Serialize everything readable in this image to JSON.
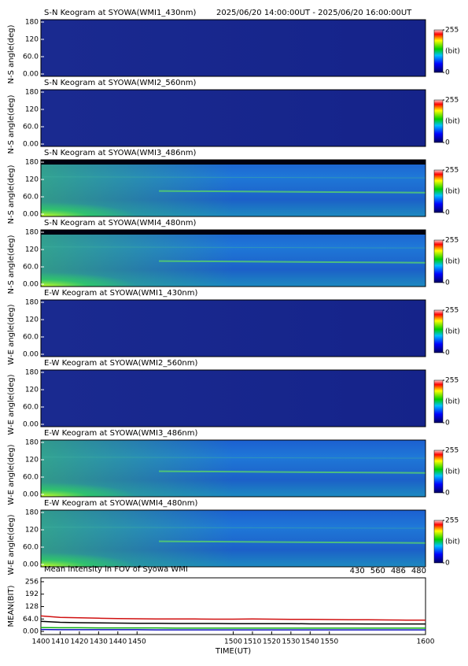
{
  "chart_data": [
    {
      "type": "keogram",
      "title": "S-N Keogram at SYOWA(WMI1_430nm)",
      "subtitle": "2025/06/20 14:00:00UT - 2025/06/20 16:00:00UT",
      "ylabel": "N-S angle(deg)",
      "ylim": [
        0,
        180
      ],
      "yticks": [
        {
          "value": 0,
          "label": "0.00"
        },
        {
          "value": 60,
          "label": "60.0"
        },
        120,
        180
      ],
      "colorbar": {
        "ticks": [
          0,
          255
        ],
        "label": "(bit)"
      }
    },
    {
      "type": "keogram",
      "title": "S-N Keogram at SYOWA(WMI2_560nm)",
      "ylabel": "N-S angle(deg)",
      "ylim": [
        0,
        180
      ],
      "yticks": [
        {
          "value": 0,
          "label": "0.00"
        },
        {
          "value": 60,
          "label": "60.0"
        },
        120,
        180
      ],
      "colorbar": {
        "ticks": [
          0,
          255
        ],
        "label": "(bit)"
      }
    },
    {
      "type": "keogram",
      "title": "S-N Keogram at SYOWA(WMI3_486nm)",
      "ylabel": "N-S angle(deg)",
      "ylim": [
        0,
        180
      ],
      "yticks": [
        {
          "value": 0,
          "label": "0.00"
        },
        {
          "value": 60,
          "label": "60.0"
        },
        120,
        180
      ],
      "colorbar": {
        "ticks": [
          0,
          255
        ],
        "label": "(bit)"
      }
    },
    {
      "type": "keogram",
      "title": "S-N Keogram at SYOWA(WMI4_480nm)",
      "ylabel": "N-S angle(deg)",
      "ylim": [
        0,
        180
      ],
      "yticks": [
        {
          "value": 0,
          "label": "0.00"
        },
        {
          "value": 60,
          "label": "60.0"
        },
        120,
        180
      ],
      "colorbar": {
        "ticks": [
          0,
          255
        ],
        "label": "(bit)"
      }
    },
    {
      "type": "keogram",
      "title": "E-W Keogram at SYOWA(WMI1_430nm)",
      "ylabel": "W-E angle(deg)",
      "ylim": [
        0,
        180
      ],
      "yticks": [
        {
          "value": 0,
          "label": "0.00"
        },
        {
          "value": 60,
          "label": "60.0"
        },
        120,
        180
      ],
      "colorbar": {
        "ticks": [
          0,
          255
        ],
        "label": "(bit)"
      }
    },
    {
      "type": "keogram",
      "title": "E-W Keogram at SYOWA(WMI2_560nm)",
      "ylabel": "W-E angle(deg)",
      "ylim": [
        0,
        180
      ],
      "yticks": [
        {
          "value": 0,
          "label": "0.00"
        },
        {
          "value": 60,
          "label": "60.0"
        },
        120,
        180
      ],
      "colorbar": {
        "ticks": [
          0,
          255
        ],
        "label": "(bit)"
      }
    },
    {
      "type": "keogram",
      "title": "E-W Keogram at SYOWA(WMI3_486nm)",
      "ylabel": "W-E angle(deg)",
      "ylim": [
        0,
        180
      ],
      "yticks": [
        {
          "value": 0,
          "label": "0.00"
        },
        {
          "value": 60,
          "label": "60.0"
        },
        120,
        180
      ],
      "colorbar": {
        "ticks": [
          0,
          255
        ],
        "label": "(bit)"
      }
    },
    {
      "type": "keogram",
      "title": "E-W Keogram at SYOWA(WMI4_480nm)",
      "ylabel": "W-E angle(deg)",
      "ylim": [
        0,
        180
      ],
      "yticks": [
        {
          "value": 0,
          "label": "0.00"
        },
        {
          "value": 60,
          "label": "60.0"
        },
        120,
        180
      ],
      "colorbar": {
        "ticks": [
          0,
          255
        ],
        "label": "(bit)"
      }
    },
    {
      "type": "line",
      "title": "Mean intensity in FOV of Syowa WMI",
      "xlabel": "TIME(UT)",
      "ylabel": "MEAN(BIT)",
      "x": [
        1400,
        1410,
        1420,
        1430,
        1440,
        1450,
        1460,
        1470,
        1480,
        1490,
        1500,
        1510,
        1520,
        1530,
        1540,
        1550,
        1560,
        1570,
        1580,
        1590,
        1600
      ],
      "xlim": [
        1400,
        1600
      ],
      "xticks": [
        1400,
        1410,
        1420,
        1430,
        1440,
        1450,
        1500,
        1510,
        1520,
        1530,
        1540,
        1550,
        1600
      ],
      "ylim": [
        -16,
        276
      ],
      "yticks": [
        {
          "value": 0,
          "label": "0.00"
        },
        {
          "value": 64,
          "label": "64.0"
        },
        128,
        192,
        256
      ],
      "series": [
        {
          "name": "430",
          "color": "#1010c0",
          "values": [
            10,
            9,
            9,
            9,
            9,
            9,
            8,
            8,
            8,
            8,
            8,
            8,
            8,
            8,
            8,
            8,
            8,
            8,
            8,
            8,
            8
          ]
        },
        {
          "name": "560",
          "color": "#10b010",
          "values": [
            20,
            19,
            19,
            18,
            18,
            18,
            18,
            17,
            17,
            17,
            17,
            17,
            17,
            17,
            17,
            17,
            17,
            17,
            17,
            17,
            17
          ]
        },
        {
          "name": "486",
          "color": "#d01010",
          "values": [
            80,
            72,
            70,
            68,
            66,
            65,
            64,
            64,
            64,
            63,
            63,
            64,
            63,
            62,
            62,
            61,
            60,
            60,
            59,
            58,
            58
          ]
        },
        {
          "name": "480",
          "color": "#000000",
          "values": [
            52,
            47,
            45,
            44,
            43,
            42,
            42,
            41,
            41,
            41,
            40,
            40,
            40,
            40,
            39,
            39,
            39,
            38,
            38,
            38,
            38
          ]
        }
      ]
    }
  ]
}
